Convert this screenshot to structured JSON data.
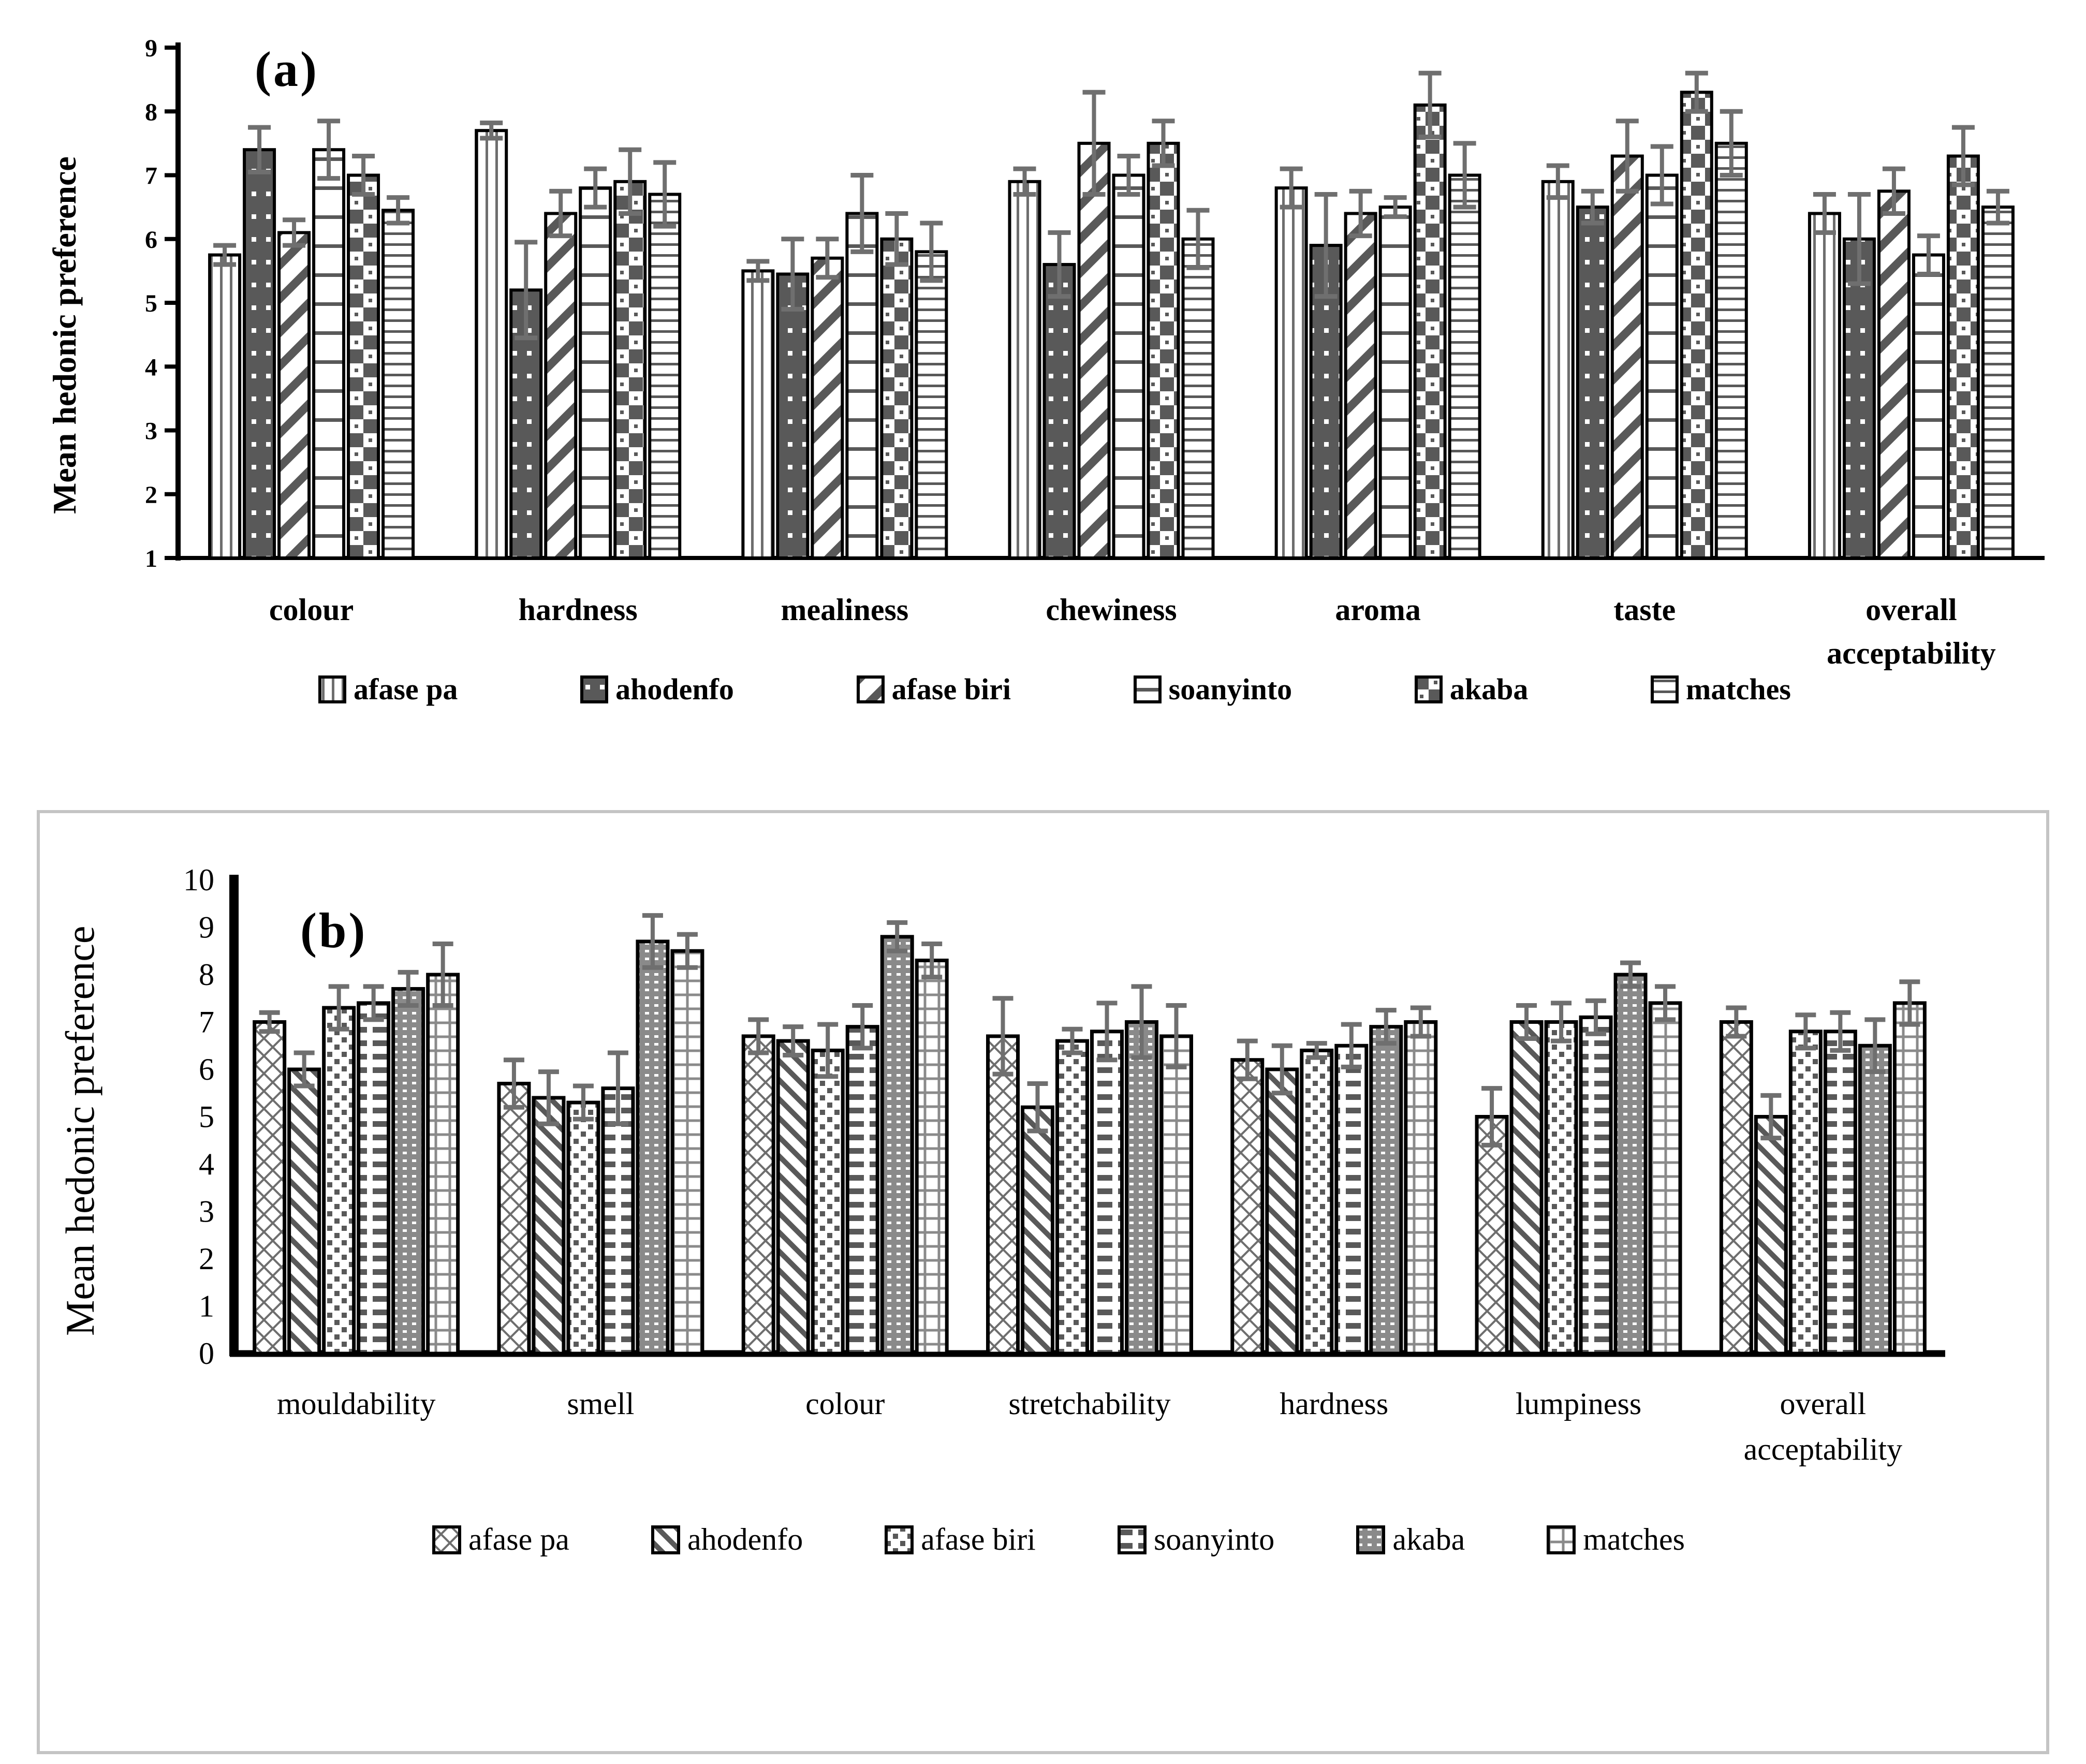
{
  "colors": {
    "bar_dark": "#595959",
    "pattern_gray": "#6e6e6e",
    "akaba_b_gray": "#8a8a8a",
    "error_bar": "#6f6f6f",
    "axis": "#000000",
    "panel_border": "#c4c4c4",
    "background": "#ffffff"
  },
  "chart_data": [
    {
      "id": "a",
      "type": "bar",
      "panel_label": "(a)",
      "ylabel": "Mean hedonic preference",
      "xlabel": "",
      "ylim": [
        1,
        9
      ],
      "yticks": [
        1,
        2,
        3,
        4,
        5,
        6,
        7,
        8,
        9
      ],
      "grid": false,
      "legend_position": "bottom",
      "error_bars": true,
      "categories": [
        "colour",
        "hardness",
        "mealiness",
        "chewiness",
        "aroma",
        "taste",
        "overall\nacceptability"
      ],
      "series": [
        {
          "name": "afase pa",
          "pattern": "vertical-lines",
          "values": [
            5.75,
            7.7,
            5.5,
            6.9,
            6.8,
            6.9,
            6.4
          ],
          "errors": [
            0.15,
            0.12,
            0.15,
            0.2,
            0.3,
            0.25,
            0.3
          ]
        },
        {
          "name": "ahodenfo",
          "pattern": "dark-white-dots",
          "values": [
            7.4,
            5.2,
            5.45,
            5.6,
            5.9,
            6.5,
            6.0
          ],
          "errors": [
            0.35,
            0.75,
            0.55,
            0.5,
            0.8,
            0.25,
            0.7
          ]
        },
        {
          "name": "afase biri",
          "pattern": "diagonal-stripes-wide",
          "values": [
            6.1,
            6.4,
            5.7,
            7.5,
            6.4,
            7.3,
            6.75
          ],
          "errors": [
            0.2,
            0.35,
            0.3,
            0.8,
            0.35,
            0.55,
            0.35
          ]
        },
        {
          "name": "soanyinto",
          "pattern": "horizontal-lines-wide",
          "values": [
            7.4,
            6.8,
            6.4,
            7.0,
            6.5,
            7.0,
            5.75
          ],
          "errors": [
            0.45,
            0.3,
            0.6,
            0.3,
            0.15,
            0.45,
            0.3
          ]
        },
        {
          "name": "akaba",
          "pattern": "checkerboard",
          "values": [
            7.0,
            6.9,
            6.0,
            7.5,
            8.1,
            8.3,
            7.3
          ],
          "errors": [
            0.3,
            0.5,
            0.4,
            0.35,
            0.5,
            0.3,
            0.45
          ]
        },
        {
          "name": "matches",
          "pattern": "horizontal-lines-dense",
          "values": [
            6.45,
            6.7,
            5.8,
            6.0,
            7.0,
            7.5,
            6.5
          ],
          "errors": [
            0.2,
            0.5,
            0.45,
            0.45,
            0.5,
            0.5,
            0.25
          ]
        }
      ]
    },
    {
      "id": "b",
      "type": "bar",
      "panel_label": "(b)",
      "ylabel": "Mean hedonic preference",
      "xlabel": "",
      "ylim": [
        0,
        10
      ],
      "yticks": [
        0,
        1,
        2,
        3,
        4,
        5,
        6,
        7,
        8,
        9,
        10
      ],
      "grid": false,
      "legend_position": "bottom",
      "error_bars": true,
      "categories": [
        "mouldability",
        "smell",
        "colour",
        "stretchability",
        "hardness",
        "lumpiness",
        "overall\nacceptability"
      ],
      "series": [
        {
          "name": "afase pa",
          "pattern": "diamond-lattice",
          "values": [
            7.0,
            5.7,
            6.7,
            6.7,
            6.2,
            5.0,
            7.0
          ],
          "errors": [
            0.2,
            0.5,
            0.35,
            0.8,
            0.4,
            0.6,
            0.3
          ]
        },
        {
          "name": "ahodenfo",
          "pattern": "diagonal-stripes-thin",
          "values": [
            6.0,
            5.4,
            6.6,
            5.2,
            6.0,
            7.0,
            5.0
          ],
          "errors": [
            0.35,
            0.55,
            0.3,
            0.5,
            0.5,
            0.35,
            0.45
          ]
        },
        {
          "name": "afase biri",
          "pattern": "small-squares",
          "values": [
            7.3,
            5.3,
            6.4,
            6.6,
            6.4,
            7.0,
            6.8
          ],
          "errors": [
            0.45,
            0.35,
            0.55,
            0.25,
            0.15,
            0.4,
            0.35
          ]
        },
        {
          "name": "soanyinto",
          "pattern": "horizontal-dashes",
          "values": [
            7.4,
            5.6,
            6.9,
            6.8,
            6.5,
            7.1,
            6.8
          ],
          "errors": [
            0.35,
            0.75,
            0.45,
            0.6,
            0.45,
            0.35,
            0.4
          ]
        },
        {
          "name": "akaba",
          "pattern": "gray-white-dots",
          "values": [
            7.7,
            8.7,
            8.8,
            7.0,
            6.9,
            8.0,
            6.5
          ],
          "errors": [
            0.35,
            0.55,
            0.3,
            0.75,
            0.35,
            0.25,
            0.55
          ]
        },
        {
          "name": "matches",
          "pattern": "open-grid",
          "values": [
            8.0,
            8.5,
            8.3,
            6.7,
            7.0,
            7.4,
            7.4
          ],
          "errors": [
            0.65,
            0.35,
            0.35,
            0.65,
            0.3,
            0.35,
            0.45
          ]
        }
      ]
    }
  ]
}
